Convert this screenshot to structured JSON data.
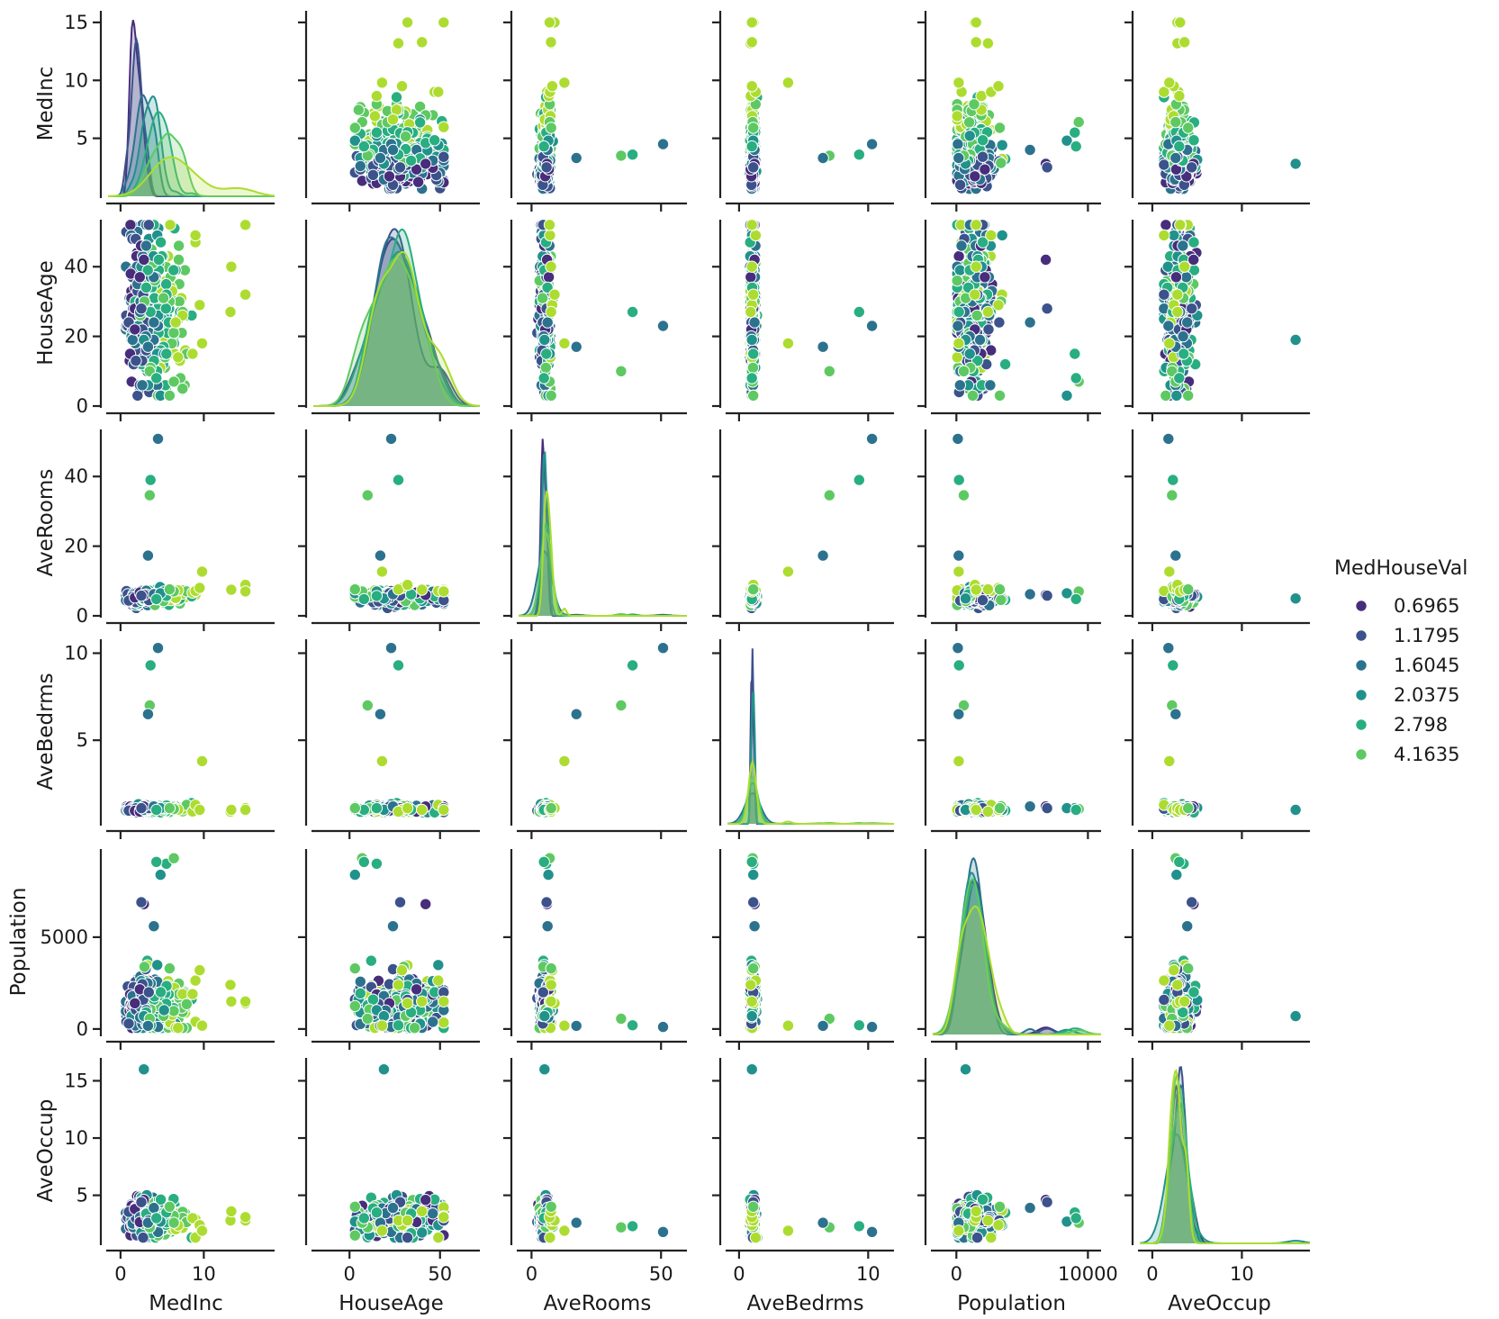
{
  "chart_data": {
    "type": "scatter",
    "kind": "pairplot",
    "variables": [
      "MedInc",
      "HouseAge",
      "AveRooms",
      "AveBedrms",
      "Population",
      "AveOccup"
    ],
    "ranges": {
      "MedInc": [
        -1.5,
        18.5
      ],
      "HouseAge": [
        -20,
        72
      ],
      "AveRooms": [
        -5,
        60
      ],
      "AveBedrms": [
        -0.9,
        12
      ],
      "Population": [
        -1800,
        11000
      ],
      "AveOccup": [
        -1.4,
        17.6
      ]
    },
    "y_ranges": {
      "MedInc": [
        0,
        16.0
      ],
      "HouseAge": [
        0,
        53.5
      ],
      "AveRooms": [
        0,
        53.5
      ],
      "AveBedrms": [
        0.2,
        10.8
      ],
      "Population": [
        -300,
        9800
      ],
      "AveOccup": [
        0.8,
        17.0
      ]
    },
    "ticks": {
      "MedInc": [
        0,
        10
      ],
      "HouseAge": [
        0,
        50
      ],
      "AveRooms": [
        0,
        50
      ],
      "AveBedrms": [
        0,
        10
      ],
      "Population": [
        0,
        10000
      ],
      "AveOccup": [
        0,
        10
      ]
    },
    "y_ticks": {
      "MedInc": [
        5,
        10,
        15
      ],
      "HouseAge": [
        0,
        20,
        40
      ],
      "AveRooms": [
        0,
        20,
        40
      ],
      "AveBedrms": [
        5,
        10
      ],
      "Population": [
        0,
        5000
      ],
      "AveOccup": [
        5,
        10,
        15
      ]
    },
    "hue": {
      "name": "MedHouseVal",
      "levels": [
        "0.6965",
        "1.1795",
        "1.6045",
        "2.0375",
        "2.798",
        "4.1635"
      ],
      "colors": [
        "#472d7b",
        "#3b528b",
        "#2c728e",
        "#21918c",
        "#28ae80",
        "#5ec962",
        "#addc30"
      ]
    },
    "outliers": [
      [
        2.8,
        19,
        5.0,
        1.0,
        700,
        16.0,
        3
      ],
      [
        3.4,
        52,
        4.5,
        1.1,
        2000,
        2.8,
        1
      ],
      [
        4.5,
        23,
        50.8,
        10.3,
        110,
        1.8,
        2
      ],
      [
        3.6,
        27,
        39.0,
        9.3,
        200,
        2.3,
        4
      ],
      [
        3.5,
        10,
        34.6,
        7.0,
        560,
        2.2,
        5
      ],
      [
        3.3,
        17,
        17.3,
        6.5,
        170,
        2.6,
        2
      ],
      [
        2.8,
        42,
        6.0,
        1.2,
        6800,
        4.6,
        0
      ],
      [
        2.5,
        28,
        5.8,
        1.1,
        6900,
        4.4,
        1
      ],
      [
        4.0,
        24,
        6.2,
        1.2,
        5600,
        3.9,
        2
      ],
      [
        5.5,
        15,
        5.7,
        1.1,
        9000,
        3.5,
        4
      ],
      [
        4.8,
        3,
        6.5,
        1.1,
        8400,
        2.7,
        3
      ],
      [
        6.4,
        7,
        7.0,
        1.05,
        9300,
        2.6,
        5
      ],
      [
        4.3,
        8,
        4.8,
        1.0,
        9100,
        3.0,
        4
      ],
      [
        9.5,
        29,
        8.0,
        1.0,
        3200,
        2.4,
        6
      ],
      [
        13.2,
        27,
        7.6,
        0.9,
        2400,
        2.8,
        6
      ],
      [
        15.0,
        32,
        8.9,
        1.1,
        1400,
        2.8,
        6
      ],
      [
        15.0,
        52,
        7.0,
        1.0,
        1500,
        3.1,
        6
      ],
      [
        13.3,
        40,
        7.5,
        1.0,
        1500,
        3.6,
        6
      ],
      [
        9.8,
        18,
        12.7,
        3.8,
        180,
        1.9,
        6
      ],
      [
        5.9,
        3,
        7.6,
        1.1,
        3300,
        4.0,
        5
      ]
    ]
  },
  "legend": {
    "title": "MedHouseVal",
    "entries": [
      "0.6965",
      "1.1795",
      "1.6045",
      "2.0375",
      "2.798",
      "4.1635"
    ]
  }
}
